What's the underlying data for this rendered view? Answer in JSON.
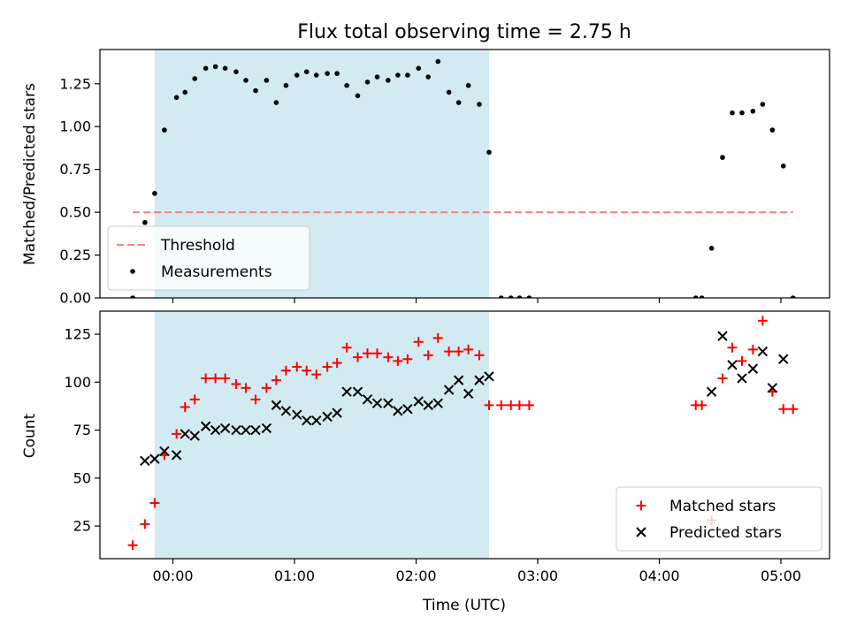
{
  "chart_data": [
    {
      "type": "scatter",
      "title": "Flux total observing time = 2.75 h",
      "xlabel": "",
      "ylabel": "Matched/Predicted stars",
      "x_unit": "hours (UTC)",
      "xlim": [
        -0.6,
        5.4
      ],
      "ylim": [
        0.0,
        1.45
      ],
      "x_tick_values": [
        0,
        1,
        2,
        3,
        4,
        5
      ],
      "x_tick_labels": [
        "",
        "",
        "",
        "",
        "",
        ""
      ],
      "y_ticks": [
        0.0,
        0.25,
        0.5,
        0.75,
        1.0,
        1.25
      ],
      "y_tick_labels": [
        "0.00",
        "0.25",
        "0.50",
        "0.75",
        "1.00",
        "1.25"
      ],
      "shaded_span": [
        -0.15,
        2.6
      ],
      "shade_color": "#add8e6",
      "grid": false,
      "legend_position": "lower left",
      "threshold": {
        "name": "Threshold",
        "y": 0.5,
        "x": [
          -0.33,
          5.1
        ],
        "color": "#ff7f7f",
        "style": "dashed"
      },
      "series": [
        {
          "name": "Measurements",
          "color": "#000000",
          "marker": "dot",
          "x": [
            -0.33,
            -0.23,
            -0.15,
            -0.07,
            0.03,
            0.1,
            0.18,
            0.27,
            0.35,
            0.43,
            0.52,
            0.6,
            0.68,
            0.77,
            0.85,
            0.93,
            1.02,
            1.1,
            1.18,
            1.27,
            1.35,
            1.43,
            1.52,
            1.6,
            1.68,
            1.77,
            1.85,
            1.93,
            2.02,
            2.1,
            2.18,
            2.27,
            2.35,
            2.43,
            2.52,
            2.6,
            2.7,
            2.78,
            2.85,
            2.93,
            4.3,
            4.35,
            4.43,
            4.52,
            4.6,
            4.68,
            4.77,
            4.85,
            4.93,
            5.02,
            5.1
          ],
          "y": [
            0.0,
            0.44,
            0.61,
            0.98,
            1.17,
            1.2,
            1.28,
            1.34,
            1.35,
            1.34,
            1.32,
            1.27,
            1.21,
            1.27,
            1.14,
            1.24,
            1.3,
            1.32,
            1.3,
            1.31,
            1.31,
            1.24,
            1.18,
            1.26,
            1.29,
            1.27,
            1.3,
            1.3,
            1.34,
            1.29,
            1.38,
            1.2,
            1.14,
            1.24,
            1.13,
            0.85,
            0.0,
            0.0,
            0.0,
            0.0,
            0.0,
            0.0,
            0.29,
            0.82,
            1.08,
            1.08,
            1.09,
            1.13,
            0.98,
            0.77,
            0.0
          ]
        }
      ]
    },
    {
      "type": "scatter",
      "title": "",
      "xlabel": "Time (UTC)",
      "ylabel": "Count",
      "x_unit": "hours (UTC)",
      "xlim": [
        -0.6,
        5.4
      ],
      "ylim": [
        8,
        137
      ],
      "x_tick_values": [
        0,
        1,
        2,
        3,
        4,
        5
      ],
      "x_tick_labels": [
        "00:00",
        "01:00",
        "02:00",
        "03:00",
        "04:00",
        "05:00"
      ],
      "y_ticks": [
        25,
        50,
        75,
        100,
        125
      ],
      "y_tick_labels": [
        "25",
        "50",
        "75",
        "100",
        "125"
      ],
      "shaded_span": [
        -0.15,
        2.6
      ],
      "shade_color": "#add8e6",
      "grid": false,
      "legend_position": "lower right",
      "series": [
        {
          "name": "Matched stars",
          "color": "#ff0000",
          "marker": "plus",
          "x": [
            -0.33,
            -0.23,
            -0.15,
            -0.07,
            0.03,
            0.1,
            0.18,
            0.27,
            0.35,
            0.43,
            0.52,
            0.6,
            0.68,
            0.77,
            0.85,
            0.93,
            1.02,
            1.1,
            1.18,
            1.27,
            1.35,
            1.43,
            1.52,
            1.6,
            1.68,
            1.77,
            1.85,
            1.93,
            2.02,
            2.1,
            2.18,
            2.27,
            2.35,
            2.43,
            2.52,
            2.6,
            2.7,
            2.78,
            2.85,
            2.93,
            4.3,
            4.35,
            4.43,
            4.52,
            4.6,
            4.68,
            4.77,
            4.85,
            4.93,
            5.02,
            5.1
          ],
          "y": [
            15,
            26,
            37,
            62,
            73,
            87,
            91,
            102,
            102,
            102,
            99,
            97,
            91,
            97,
            101,
            106,
            108,
            106,
            104,
            108,
            110,
            118,
            113,
            115,
            115,
            113,
            111,
            112,
            121,
            114,
            123,
            116,
            116,
            117,
            114,
            88,
            88,
            88,
            88,
            88,
            88,
            88,
            28,
            102,
            118,
            111,
            117,
            132,
            95,
            86,
            86
          ]
        },
        {
          "name": "Predicted stars",
          "color": "#000000",
          "marker": "x",
          "x": [
            -0.23,
            -0.15,
            -0.07,
            0.03,
            0.1,
            0.18,
            0.27,
            0.35,
            0.43,
            0.52,
            0.6,
            0.68,
            0.77,
            0.85,
            0.93,
            1.02,
            1.1,
            1.18,
            1.27,
            1.35,
            1.43,
            1.52,
            1.6,
            1.68,
            1.77,
            1.85,
            1.93,
            2.02,
            2.1,
            2.18,
            2.27,
            2.35,
            2.43,
            2.52,
            2.6,
            4.43,
            4.52,
            4.6,
            4.68,
            4.77,
            4.85,
            4.93,
            5.02
          ],
          "y": [
            59,
            60,
            64,
            62,
            73,
            72,
            77,
            75,
            76,
            75,
            75,
            75,
            76,
            88,
            85,
            83,
            80,
            80,
            82,
            84,
            95,
            95,
            91,
            89,
            89,
            85,
            86,
            90,
            88,
            89,
            96,
            101,
            94,
            101,
            103,
            95,
            124,
            109,
            102,
            107,
            116,
            97,
            112
          ]
        }
      ]
    }
  ]
}
